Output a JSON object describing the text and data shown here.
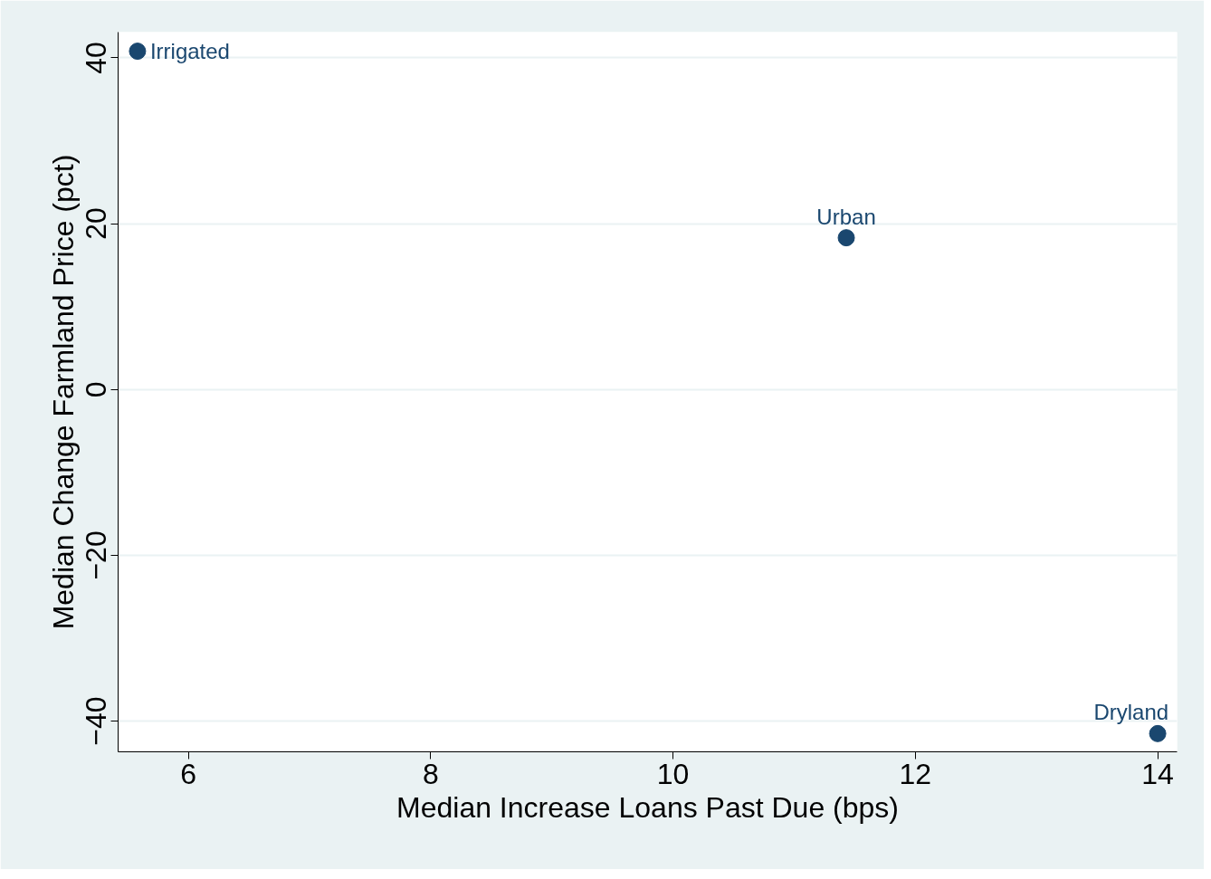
{
  "chart_data": {
    "type": "scatter",
    "xlabel": "Median Increase Loans Past Due (bps)",
    "ylabel": "Median Change Farmland Price (pct)",
    "x": [
      5.58,
      11.43,
      14.0
    ],
    "values": [
      40.8,
      18.3,
      -41.5
    ],
    "color": "#1a476f",
    "marker": "circle",
    "annotations": [
      {
        "text": "Irrigated",
        "x": 5.58,
        "y": 40.8
      },
      {
        "text": "Urban",
        "x": 11.43,
        "y": 18.3
      },
      {
        "text": "Dryland",
        "x": 14.0,
        "y": -41.5
      }
    ],
    "xlim": [
      5.42,
      14.16
    ],
    "ylim": [
      -43.7,
      43.1
    ],
    "xticks": [
      6,
      8,
      10,
      12,
      14
    ],
    "yticks": [
      -40,
      -20,
      0,
      20,
      40
    ],
    "grid": "y"
  }
}
